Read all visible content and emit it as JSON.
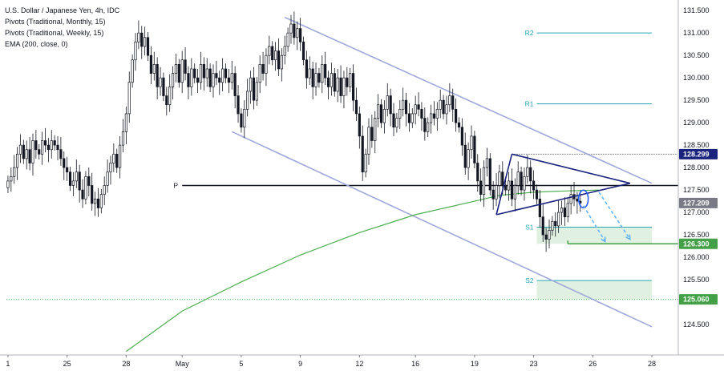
{
  "legend": {
    "symbol": "U.S. Dollar / Japanese Yen, 4h, IDC",
    "ind1": "Pivots (Traditional, Monthly, 15)",
    "ind2": "Pivots (Traditional, Weekly, 15)",
    "ind3": "EMA (200, close, 0)"
  },
  "colors": {
    "bull": "#ffffff",
    "bear": "#131722",
    "wick": "#131722",
    "ema": "#4caf50",
    "channel": "#9fa8da",
    "triangle": "#1a237e",
    "weeklyPivot": "#26a6b5",
    "price": "#2962ff",
    "support": "#4caf50",
    "gridDot": "#4caf50",
    "projection": "#64b5f6",
    "lastPrice": "#787b86"
  },
  "chart_data": {
    "type": "candlestick",
    "symbol": "USDJPY",
    "timeframe": "4h",
    "x_tick_labels": [
      "1",
      "25",
      "28",
      "May",
      "5",
      "9",
      "12",
      "16",
      "19",
      "23",
      "26",
      "28"
    ],
    "x_tick_index": [
      0,
      19,
      38,
      56,
      75,
      94,
      113,
      131,
      150,
      169,
      188,
      207
    ],
    "y_ticks": [
      124.5,
      125.0,
      125.5,
      126.0,
      126.5,
      127.0,
      127.5,
      128.0,
      128.5,
      129.0,
      129.5,
      130.0,
      130.5,
      131.0,
      131.5
    ],
    "ylim": [
      124.0,
      131.7
    ],
    "grid": false,
    "closes": [
      127.7,
      127.8,
      128.0,
      128.3,
      128.5,
      128.2,
      128.4,
      128.1,
      128.6,
      128.4,
      128.3,
      128.6,
      128.5,
      128.4,
      128.6,
      128.5,
      128.4,
      128.2,
      128.0,
      127.9,
      127.6,
      127.7,
      127.9,
      127.5,
      127.3,
      127.8,
      127.6,
      127.2,
      127.3,
      127.1,
      127.4,
      127.6,
      127.9,
      128.1,
      128.3,
      128.0,
      128.5,
      128.8,
      129.2,
      129.9,
      130.4,
      130.8,
      131.0,
      130.7,
      130.9,
      130.5,
      130.1,
      130.3,
      129.8,
      130.0,
      129.6,
      129.4,
      129.8,
      130.1,
      130.3,
      129.9,
      130.4,
      130.1,
      129.8,
      130.2,
      130.0,
      129.9,
      130.3,
      130.0,
      130.2,
      129.8,
      130.1,
      130.0,
      129.9,
      130.2,
      130.0,
      129.9,
      130.1,
      129.6,
      129.2,
      128.9,
      129.3,
      129.7,
      130.0,
      129.5,
      129.9,
      130.3,
      130.1,
      130.5,
      130.7,
      130.4,
      130.6,
      130.2,
      130.5,
      130.7,
      131.0,
      131.2,
      130.9,
      131.1,
      130.8,
      130.4,
      130.0,
      130.2,
      129.8,
      130.1,
      129.9,
      130.3,
      130.0,
      129.8,
      130.1,
      129.7,
      130.0,
      129.6,
      130.0,
      129.8,
      130.1,
      129.5,
      129.2,
      128.7,
      127.9,
      128.3,
      128.9,
      128.6,
      129.1,
      129.4,
      129.0,
      129.3,
      129.6,
      129.2,
      128.9,
      129.1,
      129.3,
      129.5,
      129.2,
      129.0,
      129.2,
      129.4,
      129.3,
      129.1,
      128.8,
      129.0,
      129.2,
      129.1,
      129.3,
      129.5,
      129.2,
      129.4,
      129.6,
      129.3,
      129.0,
      128.9,
      128.5,
      128.0,
      128.4,
      128.7,
      128.1,
      127.7,
      127.4,
      128.0,
      128.2,
      127.5,
      127.3,
      127.6,
      127.9,
      127.6,
      127.5,
      127.7,
      127.3,
      127.6,
      127.9,
      127.5,
      127.8,
      128.0,
      127.7,
      127.5,
      127.3,
      126.9,
      126.5,
      126.4,
      126.6,
      126.8,
      126.7,
      127.0,
      127.1,
      126.9,
      127.2,
      127.4,
      127.3,
      127.25,
      127.21
    ],
    "ema200": [
      [
        38,
        123.9
      ],
      [
        56,
        124.8
      ],
      [
        75,
        125.45
      ],
      [
        94,
        126.05
      ],
      [
        113,
        126.55
      ],
      [
        131,
        126.95
      ],
      [
        150,
        127.25
      ],
      [
        158,
        127.38
      ],
      [
        169,
        127.45
      ],
      [
        180,
        127.48
      ],
      [
        190,
        127.5
      ]
    ],
    "monthly_pivot_P": 127.6,
    "weekly_pivots": {
      "R2": 131.0,
      "R1": 129.42,
      "S1": 126.67,
      "S2": 125.48
    },
    "channel_upper": [
      [
        89,
        131.35
      ],
      [
        207,
        127.65
      ]
    ],
    "channel_lower": [
      [
        72,
        128.8
      ],
      [
        207,
        124.45
      ]
    ],
    "triangle": {
      "upper": [
        [
          162,
          128.3
        ],
        [
          200,
          127.65
        ]
      ],
      "lower": [
        [
          157,
          126.95
        ],
        [
          200,
          127.65
        ]
      ],
      "left": [
        [
          157,
          126.95
        ],
        [
          162,
          128.3
        ]
      ]
    },
    "highlight_ellipse": [
      185,
      127.3
    ],
    "projections": [
      [
        [
          185,
          127.15
        ],
        [
          192,
          126.35
        ]
      ],
      [
        [
          190,
          127.45
        ],
        [
          200,
          126.4
        ]
      ]
    ],
    "support_zones": [
      [
        170,
        207,
        126.67,
        126.3
      ],
      [
        170,
        207,
        125.48,
        125.06
      ]
    ],
    "ref_levels": {
      "dotted_top": 128.299,
      "dotted_bottom": 125.06,
      "target": 126.3
    },
    "last_price": 127.209,
    "pivot_labels": {
      "P": "P",
      "R2": "R2",
      "R1": "R1",
      "S1": "S1",
      "S2": "S2"
    },
    "price_labels": [
      {
        "value": 131.5,
        "text": "131.500"
      },
      {
        "value": 131.0,
        "text": "131.000"
      },
      {
        "value": 130.5,
        "text": "130.500"
      },
      {
        "value": 130.0,
        "text": "130.000"
      },
      {
        "value": 129.5,
        "text": "129.500"
      },
      {
        "value": 129.0,
        "text": "129.000"
      },
      {
        "value": 128.5,
        "text": "128.500"
      },
      {
        "value": 128.0,
        "text": "128.000"
      },
      {
        "value": 127.5,
        "text": "127.500"
      },
      {
        "value": 127.0,
        "text": "127.000"
      },
      {
        "value": 126.5,
        "text": "126.500"
      },
      {
        "value": 126.0,
        "text": "126.000"
      },
      {
        "value": 125.5,
        "text": "125.500"
      },
      {
        "value": 125.0,
        "text": "125.000"
      },
      {
        "value": 124.5,
        "text": "124.500"
      }
    ],
    "highlight_labels": [
      {
        "value": 128.299,
        "text": "128.299",
        "color": "#1a237e"
      },
      {
        "value": 127.209,
        "text": "127.209",
        "color": "#787b86"
      },
      {
        "value": 126.3,
        "text": "126.300",
        "color": "#43a047"
      },
      {
        "value": 125.06,
        "text": "125.060",
        "color": "#43a047"
      }
    ]
  }
}
